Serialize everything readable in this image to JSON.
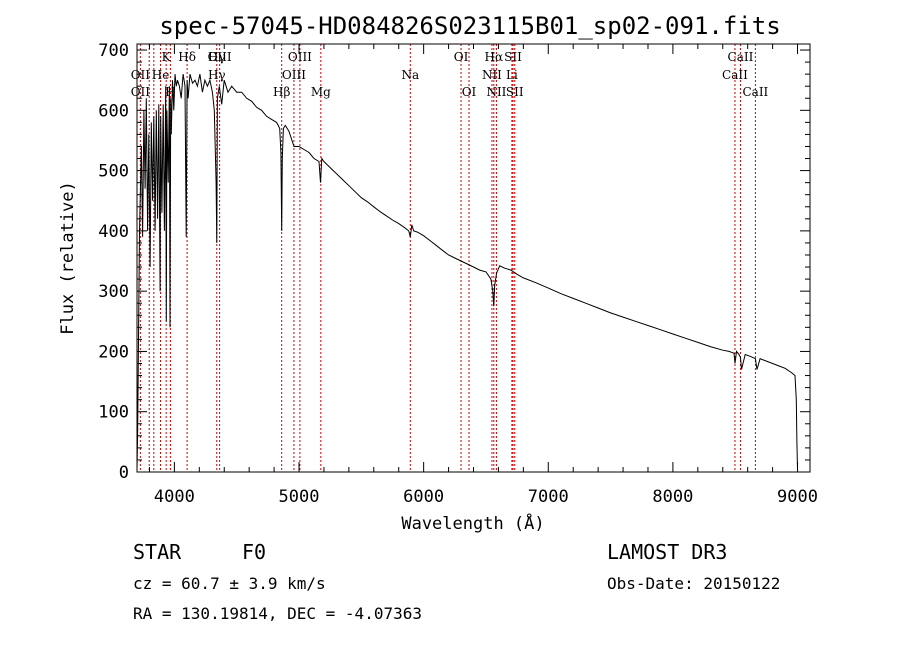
{
  "chart_data": {
    "type": "line",
    "title": "spec-57045-HD084826S023115B01_sp02-091.fits",
    "xlabel": "Wavelength (Å)",
    "ylabel": "Flux (relative)",
    "xlim": [
      3700,
      9100
    ],
    "ylim": [
      0,
      710
    ],
    "xticks": [
      4000,
      5000,
      6000,
      7000,
      8000,
      9000
    ],
    "yticks": [
      0,
      100,
      200,
      300,
      400,
      500,
      600,
      700
    ],
    "grid": false,
    "series": [
      {
        "name": "spectrum",
        "x": [
          3700,
          3705,
          3720,
          3735,
          3745,
          3755,
          3765,
          3775,
          3785,
          3795,
          3805,
          3815,
          3825,
          3835,
          3845,
          3855,
          3865,
          3875,
          3885,
          3890,
          3900,
          3910,
          3920,
          3930,
          3935,
          3940,
          3950,
          3960,
          3965,
          3970,
          3975,
          3985,
          3995,
          4005,
          4015,
          4025,
          4040,
          4055,
          4070,
          4085,
          4095,
          4102,
          4110,
          4125,
          4145,
          4165,
          4185,
          4205,
          4225,
          4245,
          4265,
          4285,
          4305,
          4320,
          4335,
          4340,
          4345,
          4360,
          4380,
          4400,
          4430,
          4460,
          4500,
          4540,
          4580,
          4620,
          4660,
          4700,
          4740,
          4780,
          4820,
          4845,
          4855,
          4861,
          4866,
          4875,
          4890,
          4920,
          4960,
          5000,
          5040,
          5080,
          5120,
          5160,
          5172,
          5183,
          5200,
          5250,
          5300,
          5350,
          5400,
          5450,
          5500,
          5550,
          5600,
          5650,
          5700,
          5750,
          5800,
          5850,
          5880,
          5893,
          5905,
          5920,
          5950,
          6000,
          6050,
          6100,
          6150,
          6200,
          6250,
          6300,
          6350,
          6400,
          6450,
          6500,
          6540,
          6555,
          6563,
          6570,
          6585,
          6610,
          6650,
          6700,
          6750,
          6800,
          6900,
          7000,
          7100,
          7200,
          7300,
          7400,
          7500,
          7600,
          7700,
          7800,
          7900,
          8000,
          8100,
          8200,
          8300,
          8400,
          8450,
          8490,
          8498,
          8510,
          8530,
          8542,
          8550,
          8580,
          8620,
          8662,
          8675,
          8700,
          8750,
          8800,
          8850,
          8900,
          8950,
          8980,
          8990,
          8995,
          9000
        ],
        "values": [
          5,
          60,
          400,
          540,
          390,
          600,
          470,
          620,
          400,
          560,
          340,
          580,
          450,
          590,
          400,
          600,
          420,
          610,
          300,
          590,
          430,
          610,
          400,
          640,
          250,
          600,
          480,
          640,
          240,
          620,
          560,
          650,
          600,
          660,
          640,
          650,
          640,
          620,
          660,
          640,
          390,
          650,
          620,
          660,
          645,
          650,
          640,
          660,
          630,
          650,
          640,
          650,
          630,
          600,
          480,
          380,
          620,
          640,
          610,
          650,
          630,
          640,
          630,
          630,
          620,
          615,
          605,
          600,
          590,
          585,
          580,
          570,
          530,
          400,
          520,
          570,
          575,
          565,
          540,
          540,
          535,
          530,
          520,
          515,
          480,
          520,
          515,
          505,
          495,
          485,
          475,
          465,
          455,
          448,
          440,
          432,
          425,
          418,
          412,
          405,
          400,
          390,
          410,
          400,
          398,
          392,
          384,
          376,
          368,
          360,
          355,
          350,
          345,
          340,
          335,
          332,
          320,
          300,
          275,
          310,
          330,
          342,
          338,
          335,
          328,
          322,
          314,
          305,
          296,
          288,
          280,
          272,
          264,
          257,
          250,
          243,
          236,
          229,
          222,
          215,
          208,
          202,
          200,
          197,
          180,
          200,
          195,
          190,
          170,
          195,
          192,
          188,
          170,
          188,
          184,
          180,
          176,
          172,
          165,
          160,
          120,
          50,
          5
        ]
      }
    ],
    "line_labels": [
      {
        "label": "Hδ",
        "wl": 4102,
        "row": 0
      },
      {
        "label": "OII",
        "wl": 3727,
        "row": 1
      },
      {
        "label": "OII",
        "wl": 3727,
        "row": 2
      },
      {
        "label": "He",
        "wl": 3889,
        "row": 1
      },
      {
        "label": "K",
        "wl": 3934,
        "row": 0
      },
      {
        "label": "H",
        "wl": 3968,
        "row": 2
      },
      {
        "label": "Hγ",
        "wl": 4340,
        "row": 0
      },
      {
        "label": "Hγ",
        "wl": 4340,
        "row": 1
      },
      {
        "label": "OIII",
        "wl": 4363,
        "row": 0
      },
      {
        "label": "Hβ",
        "wl": 4861,
        "row": 2
      },
      {
        "label": "OIII",
        "wl": 4959,
        "row": 1
      },
      {
        "label": "OIII",
        "wl": 5007,
        "row": 0
      },
      {
        "label": "Mg",
        "wl": 5175,
        "row": 2
      },
      {
        "label": "Na",
        "wl": 5893,
        "row": 1
      },
      {
        "label": "OI",
        "wl": 6300,
        "row": 0
      },
      {
        "label": "OI",
        "wl": 6364,
        "row": 2
      },
      {
        "label": "Hα",
        "wl": 6563,
        "row": 0
      },
      {
        "label": "NII",
        "wl": 6548,
        "row": 1
      },
      {
        "label": "NII",
        "wl": 6584,
        "row": 2
      },
      {
        "label": "SII",
        "wl": 6717,
        "row": 0
      },
      {
        "label": "Li",
        "wl": 6708,
        "row": 1
      },
      {
        "label": "SII",
        "wl": 6731,
        "row": 2
      },
      {
        "label": "CaII",
        "wl": 8542,
        "row": 0
      },
      {
        "label": "CaII",
        "wl": 8498,
        "row": 1
      },
      {
        "label": "CaII",
        "wl": 8662,
        "row": 2
      }
    ],
    "line_markers": [
      3727,
      3798,
      3835,
      3889,
      3934,
      3968,
      4102,
      4340,
      4363,
      4861,
      4959,
      5007,
      5175,
      5893,
      6300,
      6364,
      6548,
      6563,
      6584,
      6708,
      6717,
      6731,
      8498,
      8542,
      8662
    ]
  },
  "footer": {
    "object_class": "STAR",
    "subclass": "F0",
    "survey": "LAMOST DR3",
    "redshift": "cz = 60.7 ± 3.9 km/s",
    "obs_date": "Obs-Date: 20150122",
    "coords": "RA = 130.19814, DEC =  -4.07363"
  },
  "colors": {
    "line": "#000000",
    "marker": "#cc0000"
  }
}
